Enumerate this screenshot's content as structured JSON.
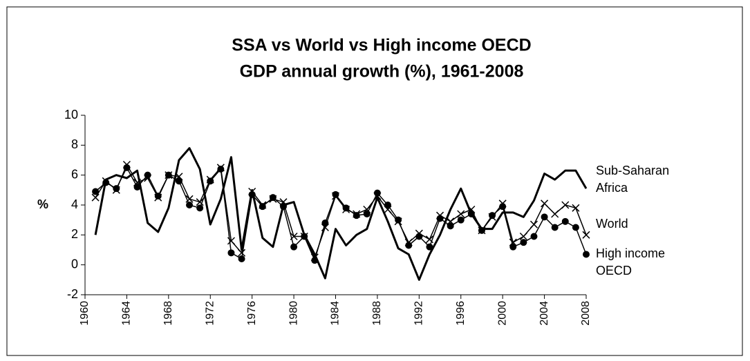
{
  "chart_data": {
    "type": "line",
    "title": [
      "SSA vs World vs High income OECD",
      "GDP annual growth (%), 1961-2008"
    ],
    "y_label": "%",
    "x": [
      1961,
      1962,
      1963,
      1964,
      1965,
      1966,
      1967,
      1968,
      1969,
      1970,
      1971,
      1972,
      1973,
      1974,
      1975,
      1976,
      1977,
      1978,
      1979,
      1980,
      1981,
      1982,
      1983,
      1984,
      1985,
      1986,
      1987,
      1988,
      1989,
      1990,
      1991,
      1992,
      1993,
      1994,
      1995,
      1996,
      1997,
      1998,
      1999,
      2000,
      2001,
      2002,
      2003,
      2004,
      2005,
      2006,
      2007,
      2008
    ],
    "xlim": [
      1960,
      2008
    ],
    "xticks": [
      1960,
      1964,
      1968,
      1972,
      1976,
      1980,
      1984,
      1988,
      1992,
      1996,
      2000,
      2004,
      2008
    ],
    "ylim": [
      -2,
      10
    ],
    "yticks": [
      -2,
      0,
      2,
      4,
      6,
      8,
      10
    ],
    "series": [
      {
        "name": "Sub-Saharan Africa",
        "color": "#000000",
        "marker": "none",
        "linewidth": 3,
        "values": [
          2.0,
          5.7,
          6.0,
          5.8,
          6.3,
          2.8,
          2.2,
          3.8,
          7.0,
          7.8,
          6.4,
          2.7,
          4.4,
          7.2,
          1.0,
          5.0,
          1.8,
          1.2,
          4.0,
          4.2,
          2.0,
          0.7,
          -0.9,
          2.4,
          1.3,
          2.0,
          2.4,
          4.5,
          2.9,
          1.1,
          0.7,
          -1.0,
          0.7,
          2.0,
          3.7,
          5.1,
          3.4,
          2.4,
          2.4,
          3.5,
          3.5,
          3.2,
          4.3,
          6.1,
          5.7,
          6.3,
          6.3,
          5.1
        ]
      },
      {
        "name": "World",
        "color": "#000000",
        "marker": "x",
        "linewidth": 1.5,
        "values": [
          4.5,
          5.6,
          5.0,
          6.7,
          5.5,
          5.8,
          4.5,
          6.0,
          5.9,
          4.4,
          4.2,
          5.7,
          6.5,
          1.6,
          0.8,
          4.9,
          4.0,
          4.4,
          4.2,
          1.9,
          1.9,
          0.5,
          2.5,
          4.6,
          3.7,
          3.4,
          3.7,
          4.6,
          3.7,
          2.9,
          1.5,
          2.1,
          1.7,
          3.3,
          2.9,
          3.4,
          3.7,
          2.3,
          3.2,
          4.1,
          1.5,
          1.9,
          2.7,
          4.1,
          3.4,
          4.0,
          3.8,
          2.0
        ]
      },
      {
        "name": "High income OECD",
        "color": "#000000",
        "marker": "circle",
        "linewidth": 1.5,
        "values": [
          4.9,
          5.5,
          5.1,
          6.5,
          5.2,
          6.0,
          4.6,
          6.0,
          5.6,
          4.0,
          3.8,
          5.6,
          6.4,
          0.8,
          0.4,
          4.7,
          3.9,
          4.5,
          3.9,
          1.2,
          1.9,
          0.3,
          2.8,
          4.7,
          3.8,
          3.3,
          3.4,
          4.8,
          4.0,
          3.0,
          1.3,
          1.9,
          1.2,
          3.1,
          2.6,
          3.0,
          3.4,
          2.3,
          3.3,
          3.9,
          1.2,
          1.5,
          1.9,
          3.2,
          2.5,
          2.9,
          2.5,
          0.7
        ]
      }
    ]
  }
}
